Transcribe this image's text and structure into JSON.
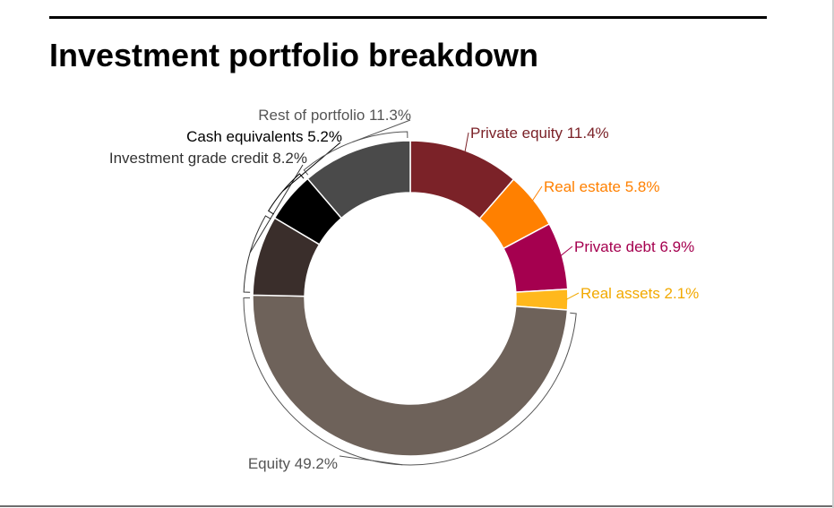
{
  "title": "Investment portfolio breakdown",
  "chart_data": {
    "type": "pie",
    "variant": "donut",
    "title": "Investment portfolio breakdown",
    "unit": "%",
    "slices": [
      {
        "label": "Private equity",
        "value": 11.4,
        "display": "Private equity 11.4%",
        "color": "#7b2228"
      },
      {
        "label": "Real estate",
        "value": 5.8,
        "display": "Real estate 5.8%",
        "color": "#ff8000"
      },
      {
        "label": "Private debt",
        "value": 6.9,
        "display": "Private debt 6.9%",
        "color": "#a5004f"
      },
      {
        "label": "Real assets",
        "value": 2.1,
        "display": "Real assets 2.1%",
        "color": "#ffb81c"
      },
      {
        "label": "Equity",
        "value": 49.2,
        "display": "Equity 49.2%",
        "color": "#6e625a"
      },
      {
        "label": "Investment grade credit",
        "value": 8.2,
        "display": "Investment grade credit 8.2%",
        "color": "#3a2e2b"
      },
      {
        "label": "Cash equivalents",
        "value": 5.2,
        "display": "Cash equivalents 5.2%",
        "color": "#000000"
      },
      {
        "label": "Rest of portfolio",
        "value": 11.3,
        "display": "Rest of portfolio 11.3%",
        "color": "#4a4a4a"
      }
    ],
    "label_colors": {
      "Private equity": "#7b2228",
      "Real estate": "#ff8000",
      "Private debt": "#a5004f",
      "Real assets": "#f2a900",
      "Equity": "#555555",
      "Investment grade credit": "#333333",
      "Cash equivalents": "#000000",
      "Rest of portfolio": "#555555"
    }
  }
}
